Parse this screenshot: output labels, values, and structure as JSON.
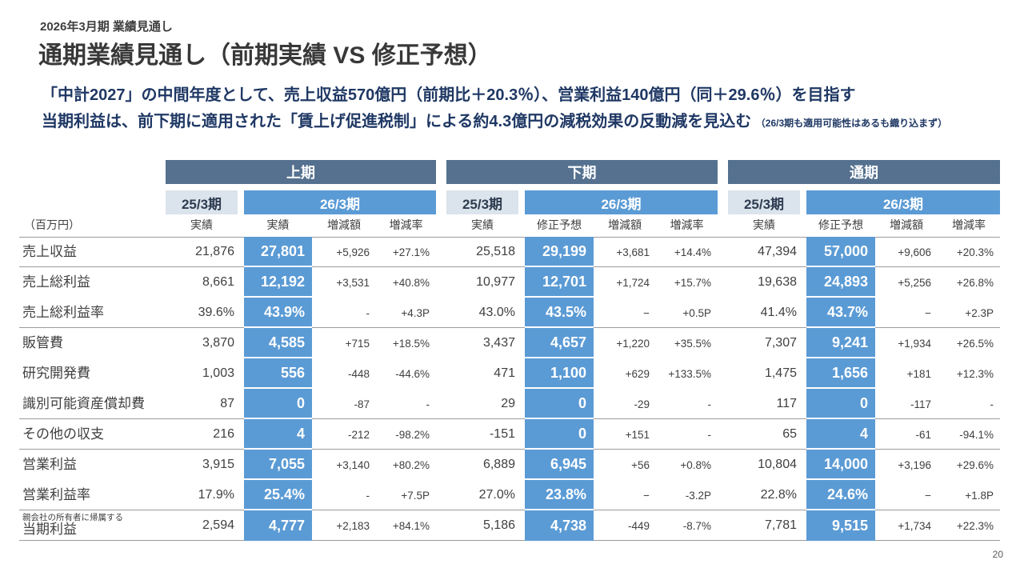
{
  "header": {
    "eyebrow": "2026年3月期 業績見通し",
    "title": "通期業績見通し（前期実績 VS 修正予想）",
    "summary_line1": "「中計2027」の中間年度として、売上収益570億円（前期比＋20.3％）、営業利益140億円（同＋29.6％）を目指す",
    "summary_line2": "当期利益は、前下期に適用された「賃上げ促進税制」による約4.3億円の減税効果の反動減を見込む",
    "summary_note": "（26/3期も適用可能性はあるも織り込まず）"
  },
  "colors": {
    "group_header": "#55718f",
    "prev_header_bg": "#dbe3ec",
    "accent_blue": "#5b9bd5",
    "summary_navy": "#1f3864",
    "divider_gray": "#9b9b9b"
  },
  "table": {
    "unit_label": "（百万円）",
    "groups": [
      {
        "title": "上期",
        "prev_label": "25/3期",
        "cur_label": "26/3期",
        "sub": [
          "実績",
          "実績",
          "増減額",
          "増減率"
        ]
      },
      {
        "title": "下期",
        "prev_label": "25/3期",
        "cur_label": "26/3期",
        "sub": [
          "実績",
          "修正予想",
          "増減額",
          "増減率"
        ]
      },
      {
        "title": "通期",
        "prev_label": "25/3期",
        "cur_label": "26/3期",
        "sub": [
          "実績",
          "修正予想",
          "増減額",
          "増減率"
        ]
      }
    ],
    "rows": [
      {
        "label": "売上収益",
        "group_end": true,
        "h1": {
          "prev": "21,876",
          "cur": "27,801",
          "diff": "+5,926",
          "rate": "+27.1%"
        },
        "h2": {
          "prev": "25,518",
          "cur": "29,199",
          "diff": "+3,681",
          "rate": "+14.4%"
        },
        "fy": {
          "prev": "47,394",
          "cur": "57,000",
          "diff": "+9,606",
          "rate": "+20.3%"
        }
      },
      {
        "label": "売上総利益",
        "group_end": false,
        "h1": {
          "prev": "8,661",
          "cur": "12,192",
          "diff": "+3,531",
          "rate": "+40.8%"
        },
        "h2": {
          "prev": "10,977",
          "cur": "12,701",
          "diff": "+1,724",
          "rate": "+15.7%"
        },
        "fy": {
          "prev": "19,638",
          "cur": "24,893",
          "diff": "+5,256",
          "rate": "+26.8%"
        }
      },
      {
        "label": "売上総利益率",
        "group_end": true,
        "h1": {
          "prev": "39.6%",
          "cur": "43.9%",
          "diff": "-",
          "rate": "+4.3P"
        },
        "h2": {
          "prev": "43.0%",
          "cur": "43.5%",
          "diff": "−",
          "rate": "+0.5P"
        },
        "fy": {
          "prev": "41.4%",
          "cur": "43.7%",
          "diff": "−",
          "rate": "+2.3P"
        }
      },
      {
        "label": "販管費",
        "group_end": false,
        "h1": {
          "prev": "3,870",
          "cur": "4,585",
          "diff": "+715",
          "rate": "+18.5%"
        },
        "h2": {
          "prev": "3,437",
          "cur": "4,657",
          "diff": "+1,220",
          "rate": "+35.5%"
        },
        "fy": {
          "prev": "7,307",
          "cur": "9,241",
          "diff": "+1,934",
          "rate": "+26.5%"
        }
      },
      {
        "label": "研究開発費",
        "group_end": false,
        "h1": {
          "prev": "1,003",
          "cur": "556",
          "diff": "-448",
          "rate": "-44.6%"
        },
        "h2": {
          "prev": "471",
          "cur": "1,100",
          "diff": "+629",
          "rate": "+133.5%"
        },
        "fy": {
          "prev": "1,475",
          "cur": "1,656",
          "diff": "+181",
          "rate": "+12.3%"
        }
      },
      {
        "label": "識別可能資産償却費",
        "group_end": true,
        "h1": {
          "prev": "87",
          "cur": "0",
          "diff": "-87",
          "rate": "-"
        },
        "h2": {
          "prev": "29",
          "cur": "0",
          "diff": "-29",
          "rate": "-"
        },
        "fy": {
          "prev": "117",
          "cur": "0",
          "diff": "-117",
          "rate": "-"
        }
      },
      {
        "label": "その他の収支",
        "group_end": true,
        "h1": {
          "prev": "216",
          "cur": "4",
          "diff": "-212",
          "rate": "-98.2%"
        },
        "h2": {
          "prev": "-151",
          "cur": "0",
          "diff": "+151",
          "rate": "-"
        },
        "fy": {
          "prev": "65",
          "cur": "4",
          "diff": "-61",
          "rate": "-94.1%"
        }
      },
      {
        "label": "営業利益",
        "group_end": false,
        "h1": {
          "prev": "3,915",
          "cur": "7,055",
          "diff": "+3,140",
          "rate": "+80.2%"
        },
        "h2": {
          "prev": "6,889",
          "cur": "6,945",
          "diff": "+56",
          "rate": "+0.8%"
        },
        "fy": {
          "prev": "10,804",
          "cur": "14,000",
          "diff": "+3,196",
          "rate": "+29.6%"
        }
      },
      {
        "label": "営業利益率",
        "group_end": true,
        "h1": {
          "prev": "17.9%",
          "cur": "25.4%",
          "diff": "-",
          "rate": "+7.5P"
        },
        "h2": {
          "prev": "27.0%",
          "cur": "23.8%",
          "diff": "−",
          "rate": "-3.2P"
        },
        "fy": {
          "prev": "22.8%",
          "cur": "24.6%",
          "diff": "−",
          "rate": "+1.8P"
        }
      },
      {
        "label": "当期利益",
        "sublabel": "親会社の所有者に帰属する",
        "group_end": true,
        "h1": {
          "prev": "2,594",
          "cur": "4,777",
          "diff": "+2,183",
          "rate": "+84.1%"
        },
        "h2": {
          "prev": "5,186",
          "cur": "4,738",
          "diff": "-449",
          "rate": "-8.7%"
        },
        "fy": {
          "prev": "7,781",
          "cur": "9,515",
          "diff": "+1,734",
          "rate": "+22.3%"
        }
      }
    ]
  },
  "footer": {
    "page_number": "20"
  }
}
